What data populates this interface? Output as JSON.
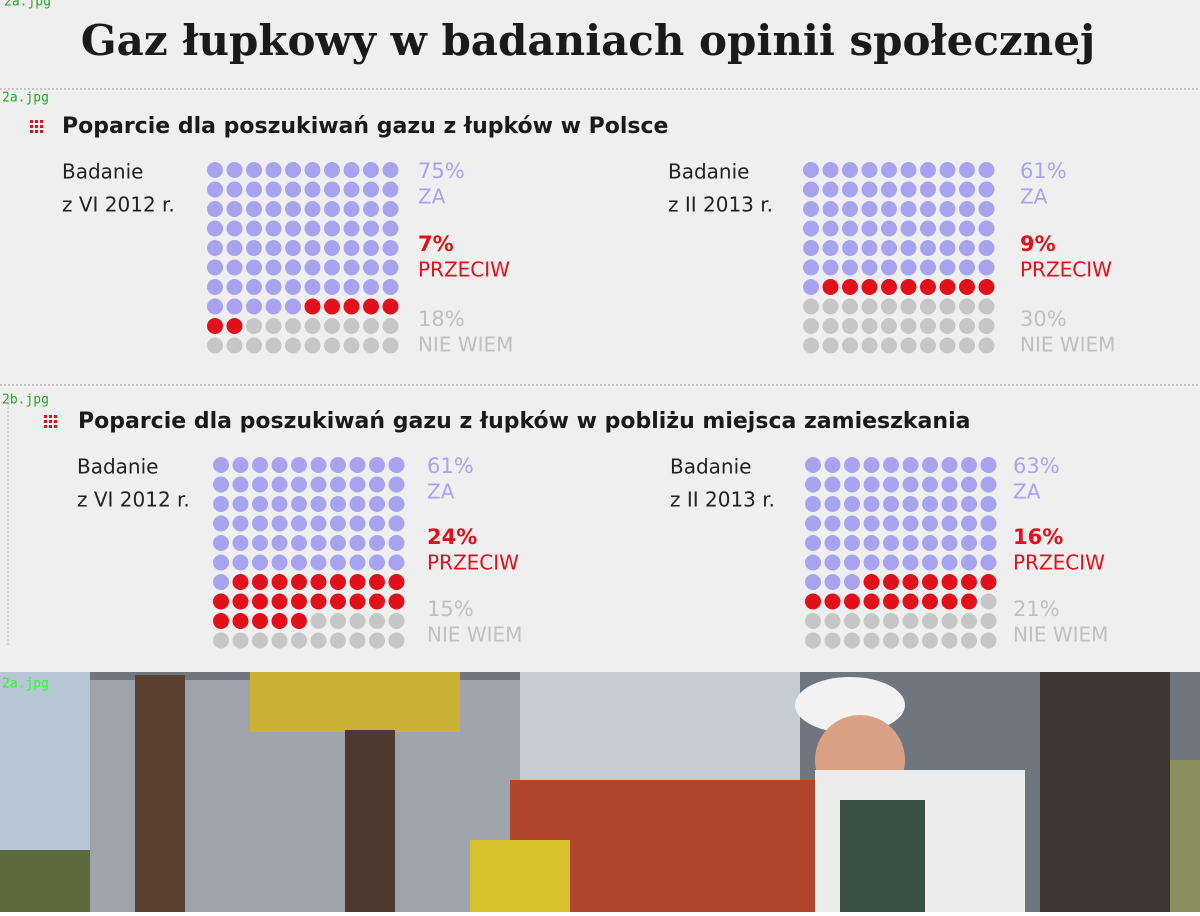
{
  "title": "Gaz łupkowy w badaniach opinii społecznej",
  "file_labels": [
    "2a.jpg",
    "2a.jpg",
    "2b.jpg",
    "2a.jpg"
  ],
  "section_titles": [
    "Poparcie dla poszukiwań gazu z łupków w Polsce",
    "Poparcie dla poszukiwań gazu z łupków w pobliżu miejsca zamieszkania"
  ],
  "chart_data": [
    {
      "type": "waffle",
      "label": [
        "Badanie",
        "z VI 2012 r."
      ],
      "categories": [
        "ZA",
        "PRZECIW",
        "NIE WIEM"
      ],
      "colors": [
        "#a9a3ef",
        "#e2101b",
        "#c6c6c6"
      ],
      "values": [
        75,
        7,
        18
      ],
      "value_labels": [
        "75%",
        "7%",
        "18%"
      ]
    },
    {
      "type": "waffle",
      "label": [
        "Badanie",
        "z II 2013 r."
      ],
      "categories": [
        "ZA",
        "PRZECIW",
        "NIE WIEM"
      ],
      "colors": [
        "#a9a3ef",
        "#e2101b",
        "#c6c6c6"
      ],
      "values": [
        61,
        9,
        30
      ],
      "value_labels": [
        "61%",
        "9%",
        "30%"
      ]
    },
    {
      "type": "waffle",
      "label": [
        "Badanie",
        "z VI 2012 r."
      ],
      "categories": [
        "ZA",
        "PRZECIW",
        "NIE WIEM"
      ],
      "colors": [
        "#a9a3ef",
        "#e2101b",
        "#c6c6c6"
      ],
      "values": [
        61,
        24,
        15
      ],
      "value_labels": [
        "61%",
        "24%",
        "15%"
      ]
    },
    {
      "type": "waffle",
      "label": [
        "Badanie",
        "z II 2013 r."
      ],
      "categories": [
        "ZA",
        "PRZECIW",
        "NIE WIEM"
      ],
      "colors": [
        "#a9a3ef",
        "#e2101b",
        "#c6c6c6"
      ],
      "values": [
        63,
        16,
        21
      ],
      "value_labels": [
        "63%",
        "16%",
        "21%"
      ]
    }
  ]
}
